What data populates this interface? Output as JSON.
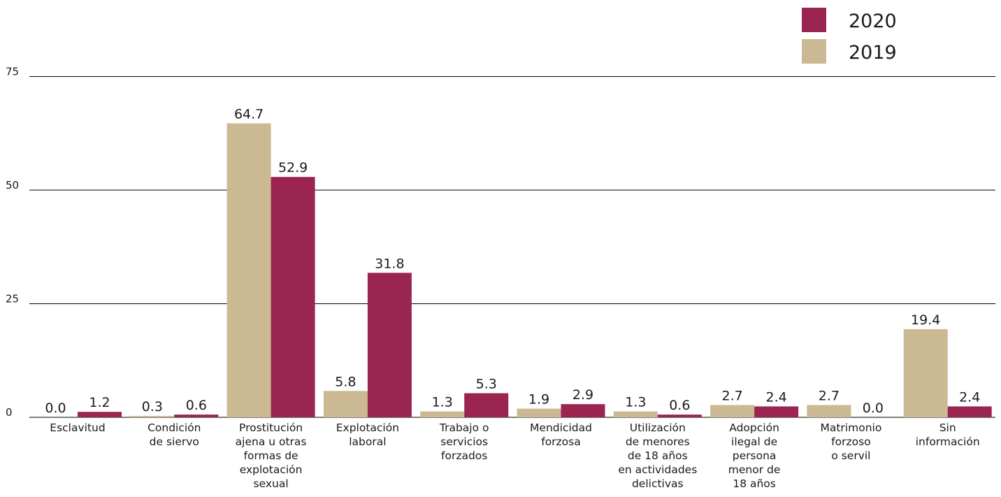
{
  "colors": {
    "series_2020": "#9a2550",
    "series_2019": "#cab992",
    "gridline": "#000000",
    "text": "#1a1a1a"
  },
  "legend": [
    {
      "key": "2020",
      "label": "2020",
      "color": "#9a2550"
    },
    {
      "key": "2019",
      "label": "2019",
      "color": "#cab992"
    }
  ],
  "chart_data": {
    "type": "bar",
    "title": "",
    "xlabel": "",
    "ylabel": "",
    "ylim": [
      0,
      75
    ],
    "yticks": [
      "0",
      "25",
      "50",
      "75"
    ],
    "grid": "horizontal",
    "legend_position": "top-right",
    "categories": [
      [
        "Esclavitud"
      ],
      [
        "Condición",
        "de siervo"
      ],
      [
        "Prostitución",
        "ajena u otras",
        "formas de",
        "explotación",
        "sexual"
      ],
      [
        "Explotación",
        "laboral"
      ],
      [
        "Trabajo o",
        "servicios",
        "forzados"
      ],
      [
        "Mendicidad",
        "forzosa"
      ],
      [
        "Utilización",
        "de menores",
        "de 18 años",
        "en actividades",
        "delictivas"
      ],
      [
        "Adopción",
        "ilegal de",
        "persona",
        "menor de",
        "18 años"
      ],
      [
        "Matrimonio",
        "forzoso",
        "o servil"
      ],
      [
        "Sin",
        "información"
      ]
    ],
    "series": [
      {
        "name": "2019",
        "color": "#cab992",
        "values": [
          0.0,
          0.3,
          64.7,
          5.8,
          1.3,
          1.9,
          1.3,
          2.7,
          2.7,
          19.4
        ],
        "labels": [
          "0.0",
          "0.3",
          "64.7",
          "5.8",
          "1.3",
          "1.9",
          "1.3",
          "2.7",
          "2.7",
          "19.4"
        ]
      },
      {
        "name": "2020",
        "color": "#9a2550",
        "values": [
          1.2,
          0.6,
          52.9,
          31.8,
          5.3,
          2.9,
          0.6,
          2.4,
          0.0,
          2.4
        ],
        "labels": [
          "1.2",
          "0.6",
          "52.9",
          "31.8",
          "5.3",
          "2.9",
          "0.6",
          "2.4",
          "0.0",
          "2.4"
        ]
      }
    ]
  }
}
